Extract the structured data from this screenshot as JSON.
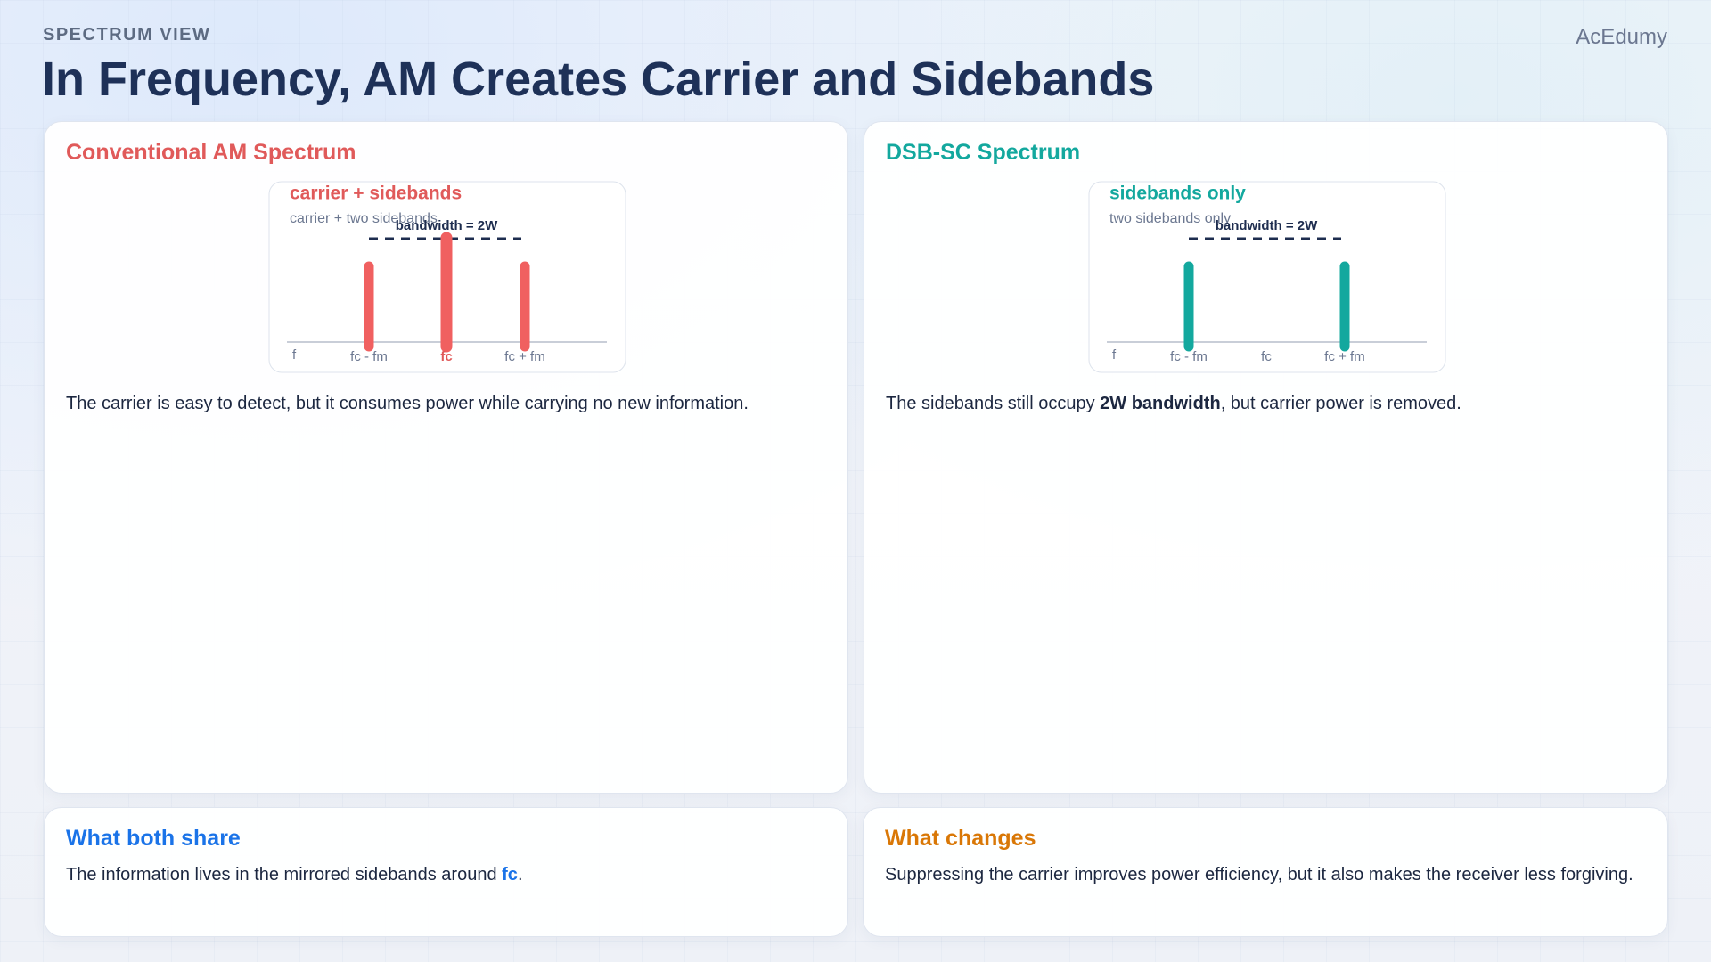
{
  "header": {
    "eyebrow": "SPECTRUM VIEW",
    "title": "In Frequency, AM Creates Carrier and Sidebands",
    "brand": "AcEdumy"
  },
  "panels": [
    {
      "title": "Conventional AM Spectrum",
      "diagram": {
        "label": "carrier + sidebands",
        "caption": "carrier + two sidebands",
        "bandwidth": "bandwidth = 2W",
        "axis": "f",
        "ticks": [
          "fc - fm",
          "fc",
          "fc + fm"
        ]
      },
      "text": [
        "The carrier is easy to detect, but it consumes power while carrying no new information."
      ]
    },
    {
      "title": "DSB-SC Spectrum",
      "diagram": {
        "label": "sidebands only",
        "caption": "two sidebands only",
        "bandwidth": "bandwidth = 2W",
        "axis": "f",
        "ticks": [
          "fc - fm",
          "fc",
          "fc + fm"
        ]
      },
      "text": [
        "The sidebands still occupy ",
        "2W bandwidth",
        ", but carrier power is removed."
      ]
    }
  ],
  "notes": [
    {
      "title": "What both share",
      "text": [
        "The information lives in the mirrored sidebands around ",
        "fc",
        "."
      ]
    },
    {
      "title": "What changes",
      "text": [
        "Suppressing the carrier improves power efficiency, but it also makes the receiver less forgiving."
      ]
    }
  ]
}
